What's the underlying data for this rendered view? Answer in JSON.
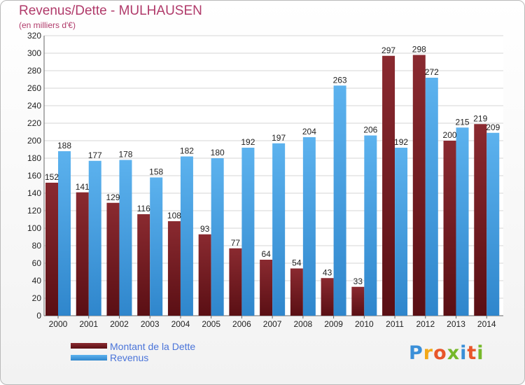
{
  "colors": {
    "debt": "#7b1f25",
    "revenue": "#4da6e8",
    "title": "#b03a6a",
    "legend_text": "#4a74d9"
  },
  "header": {
    "title": "Revenus/Dette - MULHAUSEN",
    "subtitle": "(en milliers d'€)"
  },
  "logo": {
    "text": "Proxiti"
  },
  "chart_data": {
    "type": "bar",
    "title": "Revenus/Dette - MULHAUSEN",
    "subtitle": "(en milliers d'€)",
    "xlabel": "",
    "ylabel": "",
    "categories": [
      "2000",
      "2001",
      "2002",
      "2003",
      "2004",
      "2005",
      "2006",
      "2007",
      "2008",
      "2009",
      "2010",
      "2011",
      "2012",
      "2013",
      "2014"
    ],
    "series": [
      {
        "name": "Montant de la Dette",
        "values": [
          152,
          141,
          129,
          116,
          108,
          93,
          77,
          64,
          54,
          43,
          33,
          297,
          298,
          200,
          219
        ]
      },
      {
        "name": "Revenus",
        "values": [
          188,
          177,
          178,
          158,
          182,
          180,
          192,
          197,
          204,
          263,
          206,
          192,
          272,
          215,
          209
        ]
      }
    ],
    "ylim": [
      0,
      320
    ],
    "yticks": [
      0,
      20,
      40,
      60,
      80,
      100,
      120,
      140,
      160,
      180,
      200,
      220,
      240,
      260,
      280,
      300,
      320
    ],
    "grid": true,
    "legend": "bottom-left"
  }
}
